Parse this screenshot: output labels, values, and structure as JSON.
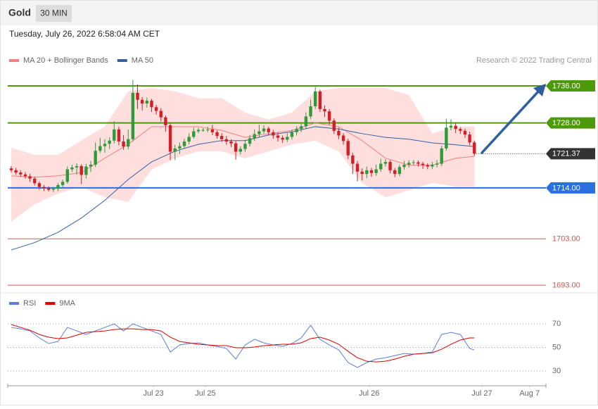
{
  "header": {
    "title": "Gold",
    "timeframe": "30 MIN",
    "timestamp": "Tuesday, July 26, 2022 6:58:04 AM CET"
  },
  "chart_data": [
    {
      "type": "candlestick",
      "credit": "Research © 2022 Trading Central",
      "xlim": [
        -0.75,
        114.3
      ],
      "ylim": [
        1691.5,
        1740.1
      ],
      "up_color": "#2e9b3a",
      "down_color": "#d21f26",
      "x": [
        0,
        1,
        2,
        3,
        4,
        5,
        6,
        7,
        8,
        9,
        10,
        11,
        12,
        13,
        14,
        15,
        16,
        17,
        18,
        19,
        20,
        21,
        22,
        23,
        24,
        25,
        26,
        27,
        28,
        29,
        30,
        31,
        32,
        33,
        34,
        35,
        36,
        37,
        38,
        39,
        40,
        41,
        42,
        43,
        44,
        45,
        46,
        47,
        48,
        49,
        50,
        51,
        52,
        53,
        54,
        55,
        56,
        57,
        58,
        59,
        60,
        61,
        62,
        63,
        64,
        65,
        66,
        67,
        68,
        69,
        70,
        71,
        72,
        73,
        74,
        75,
        76,
        77,
        78,
        79,
        80,
        81,
        82,
        83,
        84,
        85,
        86,
        87,
        88,
        89,
        90,
        91,
        92,
        93,
        94,
        95,
        96,
        97,
        98,
        99
      ],
      "open": [
        1718.2,
        1717.8,
        1717.3,
        1716.9,
        1716.5,
        1716.0,
        1715.0,
        1714.2,
        1713.9,
        1713.6,
        1713.8,
        1714.6,
        1715.3,
        1718.0,
        1718.4,
        1718.7,
        1716.8,
        1718.6,
        1719.0,
        1722.0,
        1723.0,
        1723.5,
        1724.2,
        1726.6,
        1724.0,
        1722.9,
        1724.5,
        1734.5,
        1733.0,
        1732.2,
        1732.8,
        1731.4,
        1730.6,
        1729.2,
        1727.5,
        1721.8,
        1722.5,
        1723.0,
        1724.0,
        1725.0,
        1726.2,
        1726.5,
        1726.5,
        1726.6,
        1726.0,
        1725.2,
        1724.5,
        1724.0,
        1723.6,
        1721.8,
        1722.4,
        1723.5,
        1724.7,
        1725.6,
        1726.2,
        1726.8,
        1726.0,
        1725.3,
        1724.8,
        1724.4,
        1725.0,
        1726.0,
        1726.7,
        1727.3,
        1729.4,
        1731.6,
        1734.8,
        1731.0,
        1730.5,
        1728.5,
        1726.3,
        1725.3,
        1724.1,
        1721.0,
        1719.2,
        1717.5,
        1717.0,
        1717.8,
        1717.2,
        1718.0,
        1719.2,
        1719.6,
        1717.8,
        1717.0,
        1718.5,
        1719.0,
        1719.4,
        1719.5,
        1719.2,
        1718.9,
        1718.6,
        1719.0,
        1719.2,
        1722.5,
        1727.0,
        1727.4,
        1726.7,
        1726.3,
        1725.5,
        1723.8
      ],
      "high": [
        1718.7,
        1718.3,
        1717.8,
        1717.4,
        1717.0,
        1716.4,
        1715.4,
        1714.6,
        1714.3,
        1714.2,
        1715.0,
        1715.8,
        1718.6,
        1719.0,
        1719.3,
        1719.1,
        1719.2,
        1719.8,
        1723.8,
        1724.8,
        1724.5,
        1724.9,
        1728.4,
        1727.2,
        1725.4,
        1726.6,
        1737.3,
        1736.3,
        1733.6,
        1733.5,
        1733.2,
        1731.9,
        1731.2,
        1729.6,
        1728.0,
        1723.3,
        1723.8,
        1724.6,
        1725.8,
        1727.0,
        1727.0,
        1726.9,
        1727.2,
        1727.6,
        1726.4,
        1725.8,
        1725.2,
        1724.5,
        1724.1,
        1723.0,
        1724.4,
        1725.4,
        1726.6,
        1727.6,
        1727.5,
        1727.2,
        1726.5,
        1725.9,
        1725.3,
        1725.8,
        1726.6,
        1727.3,
        1728.0,
        1730.3,
        1733.0,
        1735.8,
        1735.2,
        1731.8,
        1731.0,
        1729.0,
        1727.0,
        1725.8,
        1724.6,
        1721.6,
        1719.8,
        1718.2,
        1718.6,
        1718.3,
        1719.0,
        1720.3,
        1720.2,
        1720.0,
        1718.3,
        1719.0,
        1719.8,
        1720.0,
        1720.0,
        1719.9,
        1719.6,
        1719.3,
        1719.6,
        1720.0,
        1723.1,
        1728.9,
        1728.8,
        1728.0,
        1727.1,
        1726.8,
        1726.1,
        1724.2
      ],
      "low": [
        1717.3,
        1716.8,
        1716.4,
        1716.0,
        1715.3,
        1714.5,
        1713.6,
        1713.3,
        1713.2,
        1713.1,
        1713.3,
        1714.2,
        1714.9,
        1717.4,
        1716.8,
        1714.8,
        1716.0,
        1717.4,
        1718.5,
        1721.5,
        1721.6,
        1722.4,
        1723.6,
        1723.2,
        1722.2,
        1722.3,
        1724.0,
        1731.0,
        1730.7,
        1731.3,
        1730.4,
        1729.8,
        1728.3,
        1726.1,
        1720.0,
        1720.0,
        1721.3,
        1722.4,
        1723.4,
        1724.6,
        1725.8,
        1726.1,
        1726.0,
        1725.4,
        1724.6,
        1723.9,
        1723.3,
        1722.8,
        1720.1,
        1721.2,
        1721.8,
        1722.9,
        1724.1,
        1725.0,
        1725.7,
        1725.3,
        1724.6,
        1724.0,
        1723.7,
        1723.9,
        1724.4,
        1725.3,
        1726.0,
        1726.8,
        1728.8,
        1731.0,
        1730.4,
        1729.3,
        1727.6,
        1725.6,
        1724.5,
        1723.3,
        1720.2,
        1717.0,
        1715.4,
        1715.6,
        1716.1,
        1716.4,
        1716.6,
        1717.5,
        1718.6,
        1717.1,
        1716.3,
        1716.5,
        1717.9,
        1718.4,
        1718.9,
        1718.6,
        1718.1,
        1718.0,
        1718.0,
        1718.4,
        1718.7,
        1722.0,
        1726.4,
        1725.8,
        1725.6,
        1724.8,
        1723.2,
        1720.9
      ],
      "close": [
        1717.8,
        1717.3,
        1716.9,
        1716.5,
        1716.0,
        1715.0,
        1714.2,
        1713.9,
        1713.6,
        1713.8,
        1714.6,
        1715.3,
        1718.0,
        1718.4,
        1718.7,
        1716.8,
        1718.6,
        1719.0,
        1722.0,
        1723.0,
        1723.5,
        1724.2,
        1726.6,
        1724.0,
        1722.9,
        1724.5,
        1734.5,
        1733.0,
        1732.2,
        1732.8,
        1731.4,
        1730.6,
        1729.2,
        1727.5,
        1721.8,
        1722.5,
        1723.0,
        1724.0,
        1725.0,
        1726.2,
        1726.5,
        1726.5,
        1726.6,
        1726.0,
        1725.2,
        1724.5,
        1724.0,
        1723.6,
        1721.8,
        1722.4,
        1723.5,
        1724.7,
        1725.6,
        1726.2,
        1726.8,
        1726.0,
        1725.3,
        1724.8,
        1724.4,
        1725.0,
        1726.0,
        1726.7,
        1727.3,
        1729.4,
        1731.6,
        1734.8,
        1731.0,
        1730.5,
        1728.5,
        1726.3,
        1725.3,
        1724.1,
        1721.0,
        1719.2,
        1717.5,
        1717.0,
        1717.8,
        1717.2,
        1718.0,
        1719.2,
        1719.6,
        1717.8,
        1717.0,
        1718.5,
        1719.0,
        1719.4,
        1719.5,
        1719.2,
        1718.9,
        1718.6,
        1719.0,
        1719.2,
        1722.5,
        1727.0,
        1727.4,
        1726.7,
        1726.3,
        1725.5,
        1723.8,
        1721.37
      ],
      "series": [
        {
          "name": "MA 20 + Bollinger Bands",
          "color": "#f08080",
          "band_color": "#ffdede",
          "x": [
            0,
            5,
            10,
            15,
            20,
            25,
            30,
            35,
            40,
            45,
            50,
            55,
            60,
            65,
            70,
            75,
            80,
            85,
            90,
            95,
            99
          ],
          "values": [
            1716.6,
            1716.3,
            1716.6,
            1717.3,
            1720.4,
            1723.4,
            1727.2,
            1727.2,
            1727.2,
            1726.4,
            1724.9,
            1725.7,
            1726.4,
            1728.0,
            1727.2,
            1724.2,
            1720.4,
            1718.9,
            1718.9,
            1720.4,
            1720.8
          ],
          "upper": [
            1722.6,
            1721.1,
            1721.1,
            1724.2,
            1727.2,
            1734.8,
            1735.5,
            1734.8,
            1733.3,
            1733.3,
            1730.2,
            1728.7,
            1730.2,
            1734.8,
            1735.5,
            1735.5,
            1735.5,
            1734.0,
            1725.7,
            1727.2,
            1727.2
          ],
          "lower": [
            1706.7,
            1710.5,
            1712.8,
            1714.3,
            1712.0,
            1711.0,
            1718.0,
            1720.4,
            1721.9,
            1721.9,
            1720.4,
            1721.9,
            1723.4,
            1724.2,
            1721.9,
            1715.1,
            1712.0,
            1713.5,
            1715.1,
            1714.3,
            1714.3
          ]
        },
        {
          "name": "MA 50",
          "color": "#34609e",
          "x": [
            0,
            5,
            10,
            15,
            20,
            25,
            30,
            35,
            40,
            45,
            50,
            55,
            60,
            65,
            70,
            75,
            80,
            85,
            90,
            95,
            99
          ],
          "values": [
            1700.6,
            1702.2,
            1704.4,
            1707.5,
            1711.3,
            1715.8,
            1719.6,
            1721.9,
            1723.4,
            1724.2,
            1724.2,
            1725.4,
            1726.1,
            1727.2,
            1726.7,
            1725.7,
            1724.9,
            1724.5,
            1723.7,
            1723.3,
            1722.9
          ]
        }
      ],
      "levels": [
        {
          "value": 1736,
          "label": "1736.00",
          "color": "#4c9a0a",
          "style": "solid",
          "boxed": true
        },
        {
          "value": 1728,
          "label": "1728.00",
          "color": "#4c9a0a",
          "style": "solid",
          "boxed": true
        },
        {
          "value": 1721.37,
          "label": "1721.37",
          "color": "#333333",
          "style": "dotted",
          "boxed": true
        },
        {
          "value": 1714,
          "label": "1714.00",
          "color": "#2a6fe0",
          "style": "solid",
          "boxed": true
        },
        {
          "value": 1703,
          "label": "1703.00",
          "color": "#e05050",
          "style": "solid",
          "boxed": false
        },
        {
          "value": 1693,
          "label": "1693.00",
          "color": "#e05050",
          "style": "solid",
          "boxed": false
        }
      ]
    },
    {
      "type": "line",
      "xlim": [
        -0.75,
        114.3
      ],
      "ylim": [
        19.3,
        90.9
      ],
      "yticks": [
        30,
        50,
        70
      ],
      "grid": true,
      "xticks": [
        {
          "value": 30.4,
          "label": "Jul 23"
        },
        {
          "value": 41.5,
          "label": "Jul 25"
        },
        {
          "value": 76.5,
          "label": "Jul 26"
        },
        {
          "value": 100.6,
          "label": "Jul 27"
        },
        {
          "value": 110.8,
          "label": "Aug 7"
        }
      ],
      "series": [
        {
          "name": "RSI",
          "color": "#5b7fd6",
          "x": [
            0,
            2,
            4,
            6,
            8,
            10,
            12,
            14,
            16,
            18,
            20,
            22,
            24,
            26,
            28,
            30,
            32,
            34,
            36,
            38,
            40,
            42,
            44,
            46,
            48,
            50,
            52,
            54,
            56,
            58,
            60,
            62,
            64,
            66,
            68,
            70,
            72,
            74,
            76,
            78,
            80,
            82,
            84,
            86,
            88,
            90,
            92,
            94,
            96,
            98,
            99
          ],
          "values": [
            67.0,
            65.8,
            64.0,
            58.1,
            53.3,
            55.1,
            67.0,
            64.0,
            61.0,
            64.0,
            67.0,
            70.0,
            64.0,
            70.0,
            67.0,
            64.0,
            61.0,
            46.1,
            52.1,
            53.3,
            53.9,
            52.1,
            50.9,
            49.1,
            40.1,
            52.1,
            56.9,
            53.9,
            52.1,
            50.9,
            53.3,
            58.1,
            68.8,
            56.9,
            52.1,
            47.9,
            37.2,
            33.0,
            37.2,
            40.1,
            41.3,
            43.1,
            44.9,
            44.3,
            44.9,
            46.1,
            61.0,
            62.8,
            61.0,
            49.1,
            47.9
          ]
        },
        {
          "name": "9MA",
          "color": "#e00000",
          "x": [
            0,
            2,
            4,
            6,
            8,
            10,
            12,
            14,
            16,
            18,
            20,
            22,
            24,
            26,
            28,
            30,
            32,
            34,
            36,
            38,
            40,
            42,
            44,
            46,
            48,
            50,
            52,
            54,
            56,
            58,
            60,
            62,
            64,
            66,
            68,
            70,
            72,
            74,
            76,
            78,
            80,
            82,
            84,
            86,
            88,
            90,
            92,
            94,
            96,
            98,
            99
          ],
          "values": [
            69.4,
            67.0,
            64.6,
            61.0,
            58.7,
            57.5,
            58.1,
            60.4,
            62.8,
            63.4,
            64.0,
            65.2,
            65.8,
            65.8,
            65.2,
            65.2,
            64.0,
            58.7,
            55.1,
            53.9,
            52.7,
            52.1,
            51.5,
            51.5,
            49.7,
            49.7,
            50.3,
            51.5,
            52.1,
            52.7,
            52.7,
            53.9,
            57.5,
            58.7,
            56.3,
            52.7,
            46.7,
            41.3,
            38.3,
            37.7,
            38.3,
            40.1,
            42.5,
            44.3,
            44.9,
            45.5,
            48.5,
            52.7,
            56.3,
            58.1,
            58.1
          ]
        }
      ]
    }
  ]
}
